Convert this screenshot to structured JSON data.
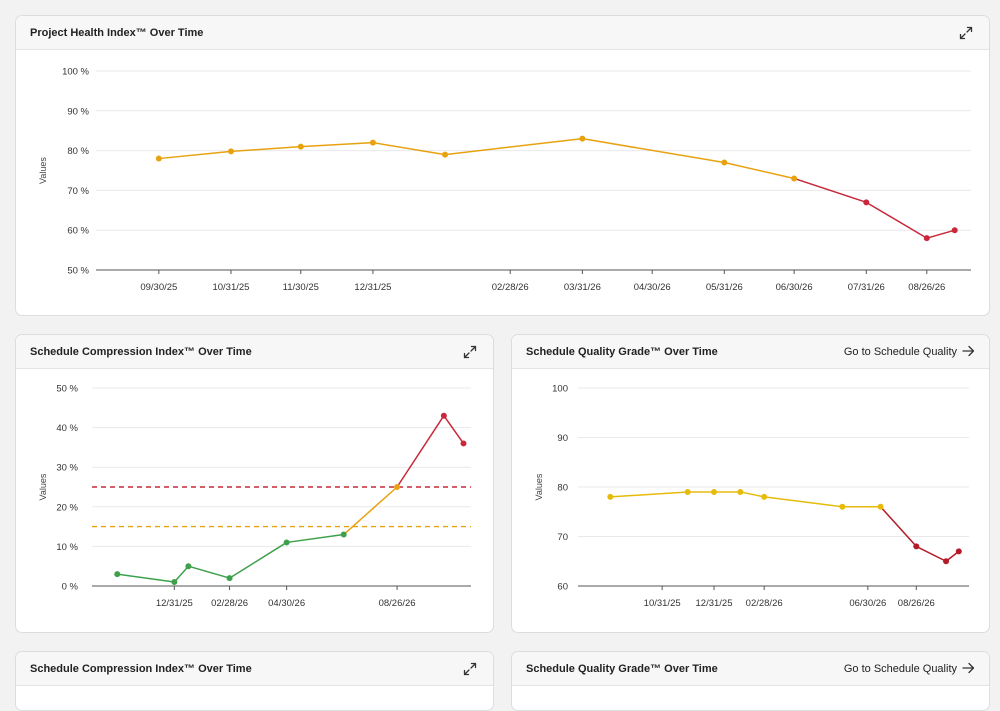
{
  "colors": {
    "orange": "#e8a20f",
    "red": "#c8283a",
    "green": "#3ea04a",
    "yellow": "#e6bb0b",
    "dark_red": "#b31b27",
    "grid": "#e9e9ec",
    "axis": "#555555"
  },
  "cards": {
    "project_health": {
      "title": "Project Health Index™ Over Time",
      "expand_icon": "expand-icon"
    },
    "schedule_compression": {
      "title": "Schedule Compression Index™ Over Time",
      "expand_icon": "expand-icon"
    },
    "schedule_quality": {
      "title": "Schedule Quality Grade™ Over Time",
      "link_label": "Go to Schedule Quality",
      "link_icon": "arrow-right-icon"
    },
    "schedule_compression_2": {
      "title": "Schedule Compression Index™ Over Time"
    },
    "schedule_quality_2": {
      "title": "Schedule Quality Grade™ Over Time",
      "link_label": "Go to Schedule Quality"
    }
  },
  "chart_data": [
    {
      "type": "line",
      "title": "Project Health Index™ Over Time",
      "ylabel": "Values",
      "ylim": [
        50,
        100
      ],
      "yticks": [
        "100 %",
        "90 %",
        "80 %",
        "70 %",
        "60 %",
        "50 %"
      ],
      "xticks": [
        "09/30/25",
        "10/31/25",
        "11/30/25",
        "12/31/25",
        "02/28/26",
        "03/31/26",
        "04/30/26",
        "05/31/26",
        "06/30/26",
        "07/31/26",
        "08/26/26"
      ],
      "grid": true,
      "points": [
        {
          "x": "09/30/25",
          "y": 78
        },
        {
          "x": "10/31/25",
          "y": 79.8
        },
        {
          "x": "11/30/25",
          "y": 81
        },
        {
          "x": "12/31/25",
          "y": 82
        },
        {
          "x": "01/31/26",
          "y": 79
        },
        {
          "x": "03/31/26",
          "y": 83
        },
        {
          "x": "05/31/26",
          "y": 77
        },
        {
          "x": "06/30/26",
          "y": 73
        },
        {
          "x": "07/31/26",
          "y": 67
        },
        {
          "x": "08/26/26",
          "y": 58
        },
        {
          "x": "09/07/26",
          "y": 60
        }
      ]
    },
    {
      "type": "line",
      "title": "Schedule Compression Index™ Over Time",
      "ylabel": "Values",
      "ylim": [
        0,
        50
      ],
      "yticks": [
        "50 %",
        "40 %",
        "30 %",
        "20 %",
        "10 %",
        "0 %"
      ],
      "xticks": [
        "12/31/25",
        "02/28/26",
        "04/30/26",
        "08/26/26"
      ],
      "grid": true,
      "thresholds": [
        {
          "y": 25,
          "color": "red"
        },
        {
          "y": 15,
          "color": "orange"
        }
      ],
      "points": [
        {
          "x": "10/31/25",
          "y": 3
        },
        {
          "x": "12/31/25",
          "y": 1
        },
        {
          "x": "01/15/26",
          "y": 5
        },
        {
          "x": "02/28/26",
          "y": 2
        },
        {
          "x": "04/30/26",
          "y": 11
        },
        {
          "x": "06/30/26",
          "y": 13
        },
        {
          "x": "08/26/26",
          "y": 25
        },
        {
          "x": "10/15/26",
          "y": 43
        },
        {
          "x": "11/05/26",
          "y": 36
        }
      ]
    },
    {
      "type": "line",
      "title": "Schedule Quality Grade™ Over Time",
      "ylabel": "Values",
      "ylim": [
        60,
        100
      ],
      "yticks": [
        "100",
        "90",
        "80",
        "70",
        "60"
      ],
      "xticks": [
        "10/31/25",
        "12/31/25",
        "02/28/26",
        "06/30/26",
        "08/26/26"
      ],
      "grid": true,
      "points": [
        {
          "x": "08/31/25",
          "y": 78
        },
        {
          "x": "11/30/25",
          "y": 79
        },
        {
          "x": "12/31/25",
          "y": 79
        },
        {
          "x": "01/31/26",
          "y": 79
        },
        {
          "x": "02/28/26",
          "y": 78
        },
        {
          "x": "05/31/26",
          "y": 76
        },
        {
          "x": "07/15/26",
          "y": 76
        },
        {
          "x": "08/26/26",
          "y": 68
        },
        {
          "x": "09/30/26",
          "y": 65
        },
        {
          "x": "10/15/26",
          "y": 67
        }
      ]
    }
  ]
}
